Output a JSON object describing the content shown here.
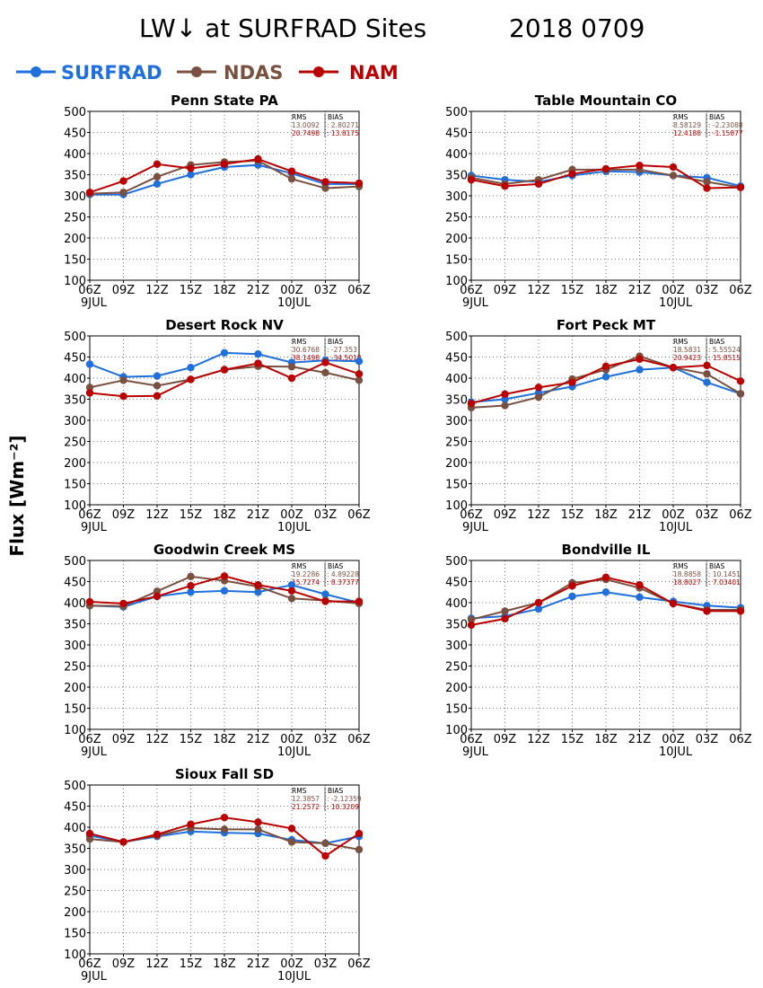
{
  "page": {
    "title": "LW↓ at SURFRAD Sites",
    "date": "2018 0709",
    "ylabel": "Flux [Wm⁻²]",
    "legend": [
      {
        "name": "SURFRAD",
        "color": "#1f6fdc"
      },
      {
        "name": "NDAS",
        "color": "#7a5040"
      },
      {
        "name": "NAM",
        "color": "#bb0000"
      }
    ],
    "stats_headers": {
      "rms": "RMS",
      "bias": "BIAS"
    }
  },
  "chart_data": [
    {
      "type": "line",
      "title": "Penn State PA",
      "x": [
        "06Z",
        "09Z",
        "12Z",
        "15Z",
        "18Z",
        "21Z",
        "00Z",
        "03Z",
        "06Z"
      ],
      "date_labels": [
        "9JUL",
        "10JUL"
      ],
      "ylim": [
        100,
        500
      ],
      "yticks": [
        100,
        150,
        200,
        250,
        300,
        350,
        400,
        450,
        500
      ],
      "grid": true,
      "series": [
        {
          "name": "SURFRAD",
          "values": [
            303,
            303,
            328,
            350,
            368,
            373,
            353,
            328,
            328
          ]
        },
        {
          "name": "NDAS",
          "values": [
            305,
            308,
            345,
            373,
            380,
            383,
            340,
            318,
            322
          ]
        },
        {
          "name": "NAM",
          "values": [
            308,
            335,
            375,
            365,
            375,
            387,
            358,
            333,
            330
          ]
        }
      ],
      "stats": [
        {
          "rms": "13.0092",
          "bias": "2.80271"
        },
        {
          "rms": "20.7498",
          "bias": "13.8175"
        }
      ]
    },
    {
      "type": "line",
      "title": "Table Mountain CO",
      "x": [
        "06Z",
        "09Z",
        "12Z",
        "15Z",
        "18Z",
        "21Z",
        "00Z",
        "03Z",
        "06Z"
      ],
      "date_labels": [
        "9JUL",
        "10JUL"
      ],
      "ylim": [
        100,
        500
      ],
      "yticks": [
        100,
        150,
        200,
        250,
        300,
        350,
        400,
        450,
        500
      ],
      "grid": true,
      "series": [
        {
          "name": "SURFRAD",
          "values": [
            348,
            338,
            333,
            348,
            358,
            356,
            348,
            343,
            323
          ]
        },
        {
          "name": "NDAS",
          "values": [
            343,
            328,
            338,
            362,
            362,
            362,
            348,
            333,
            320
          ]
        },
        {
          "name": "NAM",
          "values": [
            338,
            323,
            328,
            352,
            364,
            372,
            368,
            318,
            320
          ]
        }
      ],
      "stats": [
        {
          "rms": "8.58129",
          "bias": "-2.23088"
        },
        {
          "rms": "12.4188",
          "bias": "-1.15877"
        }
      ]
    },
    {
      "type": "line",
      "title": "Desert Rock NV",
      "x": [
        "06Z",
        "09Z",
        "12Z",
        "15Z",
        "18Z",
        "21Z",
        "00Z",
        "03Z",
        "06Z"
      ],
      "date_labels": [
        "9JUL",
        "10JUL"
      ],
      "ylim": [
        100,
        500
      ],
      "yticks": [
        100,
        150,
        200,
        250,
        300,
        350,
        400,
        450,
        500
      ],
      "grid": true,
      "series": [
        {
          "name": "SURFRAD",
          "values": [
            433,
            403,
            405,
            425,
            460,
            457,
            437,
            442,
            440
          ]
        },
        {
          "name": "NDAS",
          "values": [
            378,
            395,
            382,
            397,
            420,
            428,
            427,
            413,
            395
          ]
        },
        {
          "name": "NAM",
          "values": [
            365,
            357,
            358,
            397,
            420,
            435,
            400,
            437,
            410
          ]
        }
      ],
      "stats": [
        {
          "rms": "30.6768",
          "bias": "-27.353"
        },
        {
          "rms": "38.1498",
          "bias": "-34.5019"
        }
      ]
    },
    {
      "type": "line",
      "title": "Fort Peck MT",
      "x": [
        "06Z",
        "09Z",
        "12Z",
        "15Z",
        "18Z",
        "21Z",
        "00Z",
        "03Z",
        "06Z"
      ],
      "date_labels": [
        "9JUL",
        "10JUL"
      ],
      "ylim": [
        100,
        500
      ],
      "yticks": [
        100,
        150,
        200,
        250,
        300,
        350,
        400,
        450,
        500
      ],
      "grid": true,
      "series": [
        {
          "name": "SURFRAD",
          "values": [
            343,
            350,
            365,
            380,
            403,
            420,
            425,
            390,
            363
          ]
        },
        {
          "name": "NDAS",
          "values": [
            330,
            335,
            355,
            398,
            420,
            452,
            425,
            410,
            363
          ]
        },
        {
          "name": "NAM",
          "values": [
            340,
            362,
            378,
            390,
            428,
            445,
            425,
            430,
            393
          ]
        }
      ],
      "stats": [
        {
          "rms": "18.5831",
          "bias": "5.55524"
        },
        {
          "rms": "20.9423",
          "bias": "15.8515"
        }
      ]
    },
    {
      "type": "line",
      "title": "Goodwin Creek MS",
      "x": [
        "06Z",
        "09Z",
        "12Z",
        "15Z",
        "18Z",
        "21Z",
        "00Z",
        "03Z",
        "06Z"
      ],
      "date_labels": [
        "9JUL",
        "10JUL"
      ],
      "ylim": [
        100,
        500
      ],
      "yticks": [
        100,
        150,
        200,
        250,
        300,
        350,
        400,
        450,
        500
      ],
      "grid": true,
      "series": [
        {
          "name": "SURFRAD",
          "values": [
            393,
            390,
            415,
            425,
            428,
            425,
            442,
            420,
            400
          ]
        },
        {
          "name": "NDAS",
          "values": [
            393,
            392,
            427,
            462,
            452,
            438,
            410,
            405,
            398
          ]
        },
        {
          "name": "NAM",
          "values": [
            402,
            398,
            415,
            440,
            463,
            442,
            428,
            403,
            403
          ]
        }
      ],
      "stats": [
        {
          "rms": "19.2286",
          "bias": "4.89228"
        },
        {
          "rms": "15.7274",
          "bias": "8.37377"
        }
      ]
    },
    {
      "type": "line",
      "title": "Bondville IL",
      "x": [
        "06Z",
        "09Z",
        "12Z",
        "15Z",
        "18Z",
        "21Z",
        "00Z",
        "03Z",
        "06Z"
      ],
      "date_labels": [
        "9JUL",
        "10JUL"
      ],
      "ylim": [
        100,
        500
      ],
      "yticks": [
        100,
        150,
        200,
        250,
        300,
        350,
        400,
        450,
        500
      ],
      "grid": true,
      "series": [
        {
          "name": "SURFRAD",
          "values": [
            363,
            368,
            385,
            415,
            425,
            413,
            403,
            393,
            388
          ]
        },
        {
          "name": "NDAS",
          "values": [
            360,
            380,
            400,
            447,
            455,
            435,
            398,
            383,
            383
          ]
        },
        {
          "name": "NAM",
          "values": [
            347,
            362,
            400,
            440,
            460,
            442,
            398,
            380,
            380
          ]
        }
      ],
      "stats": [
        {
          "rms": "18.8858",
          "bias": "10.1451"
        },
        {
          "rms": "18.8027",
          "bias": "7.03401"
        }
      ]
    },
    {
      "type": "line",
      "title": "Sioux Fall SD",
      "x": [
        "06Z",
        "09Z",
        "12Z",
        "15Z",
        "18Z",
        "21Z",
        "00Z",
        "03Z",
        "06Z"
      ],
      "date_labels": [
        "9JUL",
        "10JUL"
      ],
      "ylim": [
        100,
        500
      ],
      "yticks": [
        100,
        150,
        200,
        250,
        300,
        350,
        400,
        450,
        500
      ],
      "grid": true,
      "series": [
        {
          "name": "SURFRAD",
          "values": [
            380,
            365,
            378,
            390,
            387,
            385,
            370,
            362,
            378
          ]
        },
        {
          "name": "NDAS",
          "values": [
            372,
            365,
            380,
            398,
            395,
            395,
            365,
            362,
            347
          ]
        },
        {
          "name": "NAM",
          "values": [
            385,
            365,
            383,
            407,
            423,
            412,
            397,
            332,
            385
          ]
        }
      ],
      "stats": [
        {
          "rms": "12.3857",
          "bias": "-2.12359"
        },
        {
          "rms": "21.2572",
          "bias": "10.3209"
        }
      ]
    }
  ]
}
